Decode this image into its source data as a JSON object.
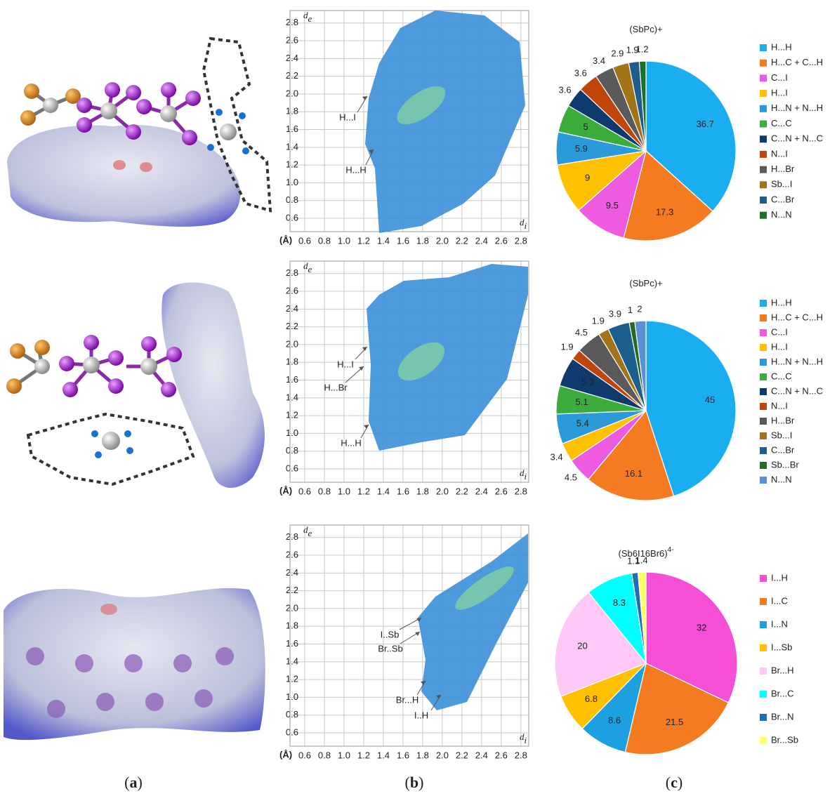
{
  "panel_labels": [
    "a",
    "b",
    "c"
  ],
  "chart_data": [
    {
      "type": "fingerprint",
      "ylabel": "d",
      "ylabel_sub": "e",
      "xlabel": "d",
      "xlabel_sub": "i",
      "unit": "(Å)",
      "xlim": [
        0.45,
        2.88
      ],
      "ylim": [
        0.45,
        2.94
      ],
      "xticks": [
        0.6,
        0.8,
        {
          "value": 1,
          "label": "1.0"
        },
        1.2,
        1.4,
        1.6,
        1.8,
        {
          "value": 2,
          "label": "2.0"
        },
        2.2,
        2.4,
        2.6,
        2.8
      ],
      "yticks": [
        0.6,
        0.8,
        {
          "value": 1,
          "label": "1.0"
        },
        1.2,
        1.4,
        1.6,
        1.8,
        {
          "value": 2,
          "label": "2.0"
        },
        2.2,
        2.4,
        2.6,
        2.8
      ],
      "grid": true,
      "annotations": [
        "H...I",
        "H...H"
      ]
    },
    {
      "type": "fingerprint",
      "ylabel": "d",
      "ylabel_sub": "e",
      "xlabel": "d",
      "xlabel_sub": "i",
      "unit": "(Å)",
      "xlim": [
        0.45,
        2.88
      ],
      "ylim": [
        0.45,
        2.94
      ],
      "xticks": [
        0.6,
        0.8,
        {
          "value": 1,
          "label": "1.0"
        },
        1.2,
        1.4,
        1.6,
        1.8,
        {
          "value": 2,
          "label": "2.0"
        },
        2.2,
        2.4,
        2.6,
        2.8
      ],
      "yticks": [
        0.6,
        0.8,
        {
          "value": 1,
          "label": "1.0"
        },
        1.2,
        1.4,
        1.6,
        1.8,
        {
          "value": 2,
          "label": "2.0"
        },
        2.2,
        2.4,
        2.6,
        2.8
      ],
      "grid": true,
      "annotations": [
        "H...I",
        "H...Br",
        "H...H"
      ]
    },
    {
      "type": "fingerprint",
      "ylabel": "d",
      "ylabel_sub": "e",
      "xlabel": "d",
      "xlabel_sub": "i",
      "unit": "(Å)",
      "xlim": [
        0.45,
        2.88
      ],
      "ylim": [
        0.45,
        2.94
      ],
      "xticks": [
        0.6,
        0.8,
        {
          "value": 1,
          "label": "1.0"
        },
        1.2,
        1.4,
        1.6,
        1.8,
        {
          "value": 2,
          "label": "2.0"
        },
        2.2,
        2.4,
        2.6,
        2.8
      ],
      "yticks": [
        0.6,
        0.8,
        {
          "value": 1,
          "label": "1.0"
        },
        1.2,
        1.4,
        1.6,
        1.8,
        {
          "value": 2,
          "label": "2.0"
        },
        2.2,
        2.4,
        2.6,
        2.8
      ],
      "grid": true,
      "annotations": [
        "I..Sb",
        "Br..Sb",
        "Br...H",
        "I..H"
      ]
    },
    {
      "type": "pie",
      "title": "(SbPc)+",
      "categories": [
        "H...H",
        "H...C + C...H",
        "C...I",
        "H...I",
        "H...N + N...H",
        "C...C",
        "C...N + N...C",
        "N...I",
        "H...Br",
        "Sb...I",
        "C...Br",
        "N...N"
      ],
      "values": [
        36.7,
        17.3,
        9.5,
        9,
        5.9,
        5,
        3.6,
        3.6,
        3.4,
        2.9,
        1.9,
        1.2
      ],
      "colors": [
        "#1aaef0",
        "#f47b20",
        "#ee5ae0",
        "#ffc000",
        "#2a9ad8",
        "#3cad3c",
        "#0e3a6e",
        "#c0450b",
        "#5a5a5a",
        "#a27417",
        "#1d5f8c",
        "#1f6e2a"
      ]
    },
    {
      "type": "pie",
      "title": "(SbPc)+",
      "categories": [
        "H...H",
        "H...C + C...H",
        "C...I",
        "H...I",
        "H...N + N...H",
        "C...C",
        "C...N + N...C",
        "N...I",
        "H...Br",
        "Sb...I",
        "C...Br",
        "Sb...Br",
        "N...N"
      ],
      "values": [
        45,
        16.1,
        4.5,
        3.4,
        5.4,
        5.1,
        5.3,
        1.9,
        4.5,
        1.9,
        3.9,
        1,
        2
      ],
      "colors": [
        "#1aaef0",
        "#f47b20",
        "#ee5ae0",
        "#ffc000",
        "#2a9ad8",
        "#3cad3c",
        "#0e3a6e",
        "#c0450b",
        "#5a5a5a",
        "#a27417",
        "#1d5f8c",
        "#246b26",
        "#5b8fd6"
      ]
    },
    {
      "type": "pie",
      "title": "(Sb6I16Br6)",
      "title_sup": "4-",
      "categories": [
        "I...H",
        "I...C",
        "I...N",
        "I...Sb",
        "Br...H",
        "Br...C",
        "Br...N",
        "Br...Sb"
      ],
      "values": [
        32,
        21.5,
        8.6,
        6.8,
        20,
        8.3,
        1.1,
        1.4
      ],
      "colors": [
        "#f54fd6",
        "#f47b20",
        "#1ca0e0",
        "#ffc000",
        "#ffc8f7",
        "#00ffff",
        "#1f6fb8",
        "#ffff66"
      ]
    }
  ]
}
